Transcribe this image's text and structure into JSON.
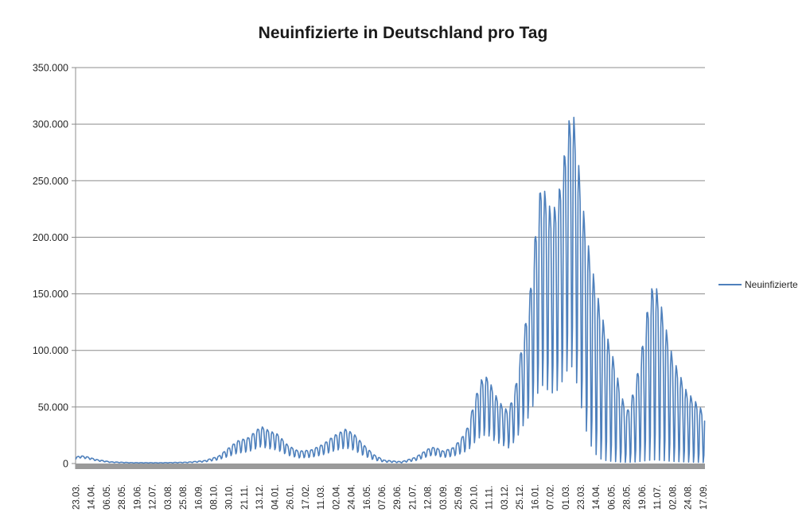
{
  "chart_data": {
    "type": "line",
    "title": "Neuinfizierte in Deutschland pro Tag",
    "legend_position": "right",
    "grid": "horizontal",
    "series": [
      {
        "name": "Neuinfizierte",
        "color": "#4E80BC"
      }
    ],
    "y_axis": {
      "min": 0,
      "max": 350000,
      "step": 50000,
      "tick_labels": [
        "0",
        "50.000",
        "100.000",
        "150.000",
        "200.000",
        "250.000",
        "300.000",
        "350.000"
      ]
    },
    "x_axis": {
      "tick_interval_points": 22,
      "total_points": 905,
      "tick_labels": [
        "23.03.",
        "14.04.",
        "06.05.",
        "28.05.",
        "19.06.",
        "12.07.",
        "03.08.",
        "25.08.",
        "16.09.",
        "08.10.",
        "30.10.",
        "21.11.",
        "13.12.",
        "04.01.",
        "26.01.",
        "17.02.",
        "11.03.",
        "02.04.",
        "24.04.",
        "16.05.",
        "07.06.",
        "29.06.",
        "21.07.",
        "12.08.",
        "03.09.",
        "25.09.",
        "20.10.",
        "11.11.",
        "03.12.",
        "25.12.",
        "16.01.",
        "07.02.",
        "01.03.",
        "23.03.",
        "14.04.",
        "06.05.",
        "28.05.",
        "19.06.",
        "11.07.",
        "02.08.",
        "24.08.",
        "17.09."
      ]
    },
    "weekly_pattern": {
      "day0": "Monday",
      "shape_mon_to_sun": [
        0.15,
        0.85,
        1.0,
        0.97,
        0.9,
        0.5,
        0.0
      ]
    },
    "envelope_anchors_format": "[day_index, weekday_peak_value, weekend_dip_fraction]",
    "envelope_anchors": [
      [
        0,
        5500,
        0.7
      ],
      [
        6,
        7000,
        0.7
      ],
      [
        16,
        6000,
        0.7
      ],
      [
        30,
        3500,
        0.65
      ],
      [
        50,
        1500,
        0.6
      ],
      [
        80,
        800,
        0.55
      ],
      [
        120,
        700,
        0.55
      ],
      [
        160,
        1200,
        0.55
      ],
      [
        185,
        2600,
        0.5
      ],
      [
        205,
        6500,
        0.5
      ],
      [
        220,
        14000,
        0.45
      ],
      [
        232,
        20000,
        0.45
      ],
      [
        248,
        23000,
        0.45
      ],
      [
        266,
        33000,
        0.45
      ],
      [
        278,
        29000,
        0.45
      ],
      [
        290,
        26000,
        0.45
      ],
      [
        305,
        16000,
        0.45
      ],
      [
        320,
        11000,
        0.45
      ],
      [
        338,
        12000,
        0.45
      ],
      [
        355,
        17000,
        0.45
      ],
      [
        372,
        25000,
        0.45
      ],
      [
        388,
        30500,
        0.45
      ],
      [
        400,
        26000,
        0.45
      ],
      [
        413,
        17000,
        0.42
      ],
      [
        428,
        8000,
        0.4
      ],
      [
        443,
        3000,
        0.4
      ],
      [
        468,
        1600,
        0.4
      ],
      [
        488,
        5500,
        0.45
      ],
      [
        508,
        13500,
        0.5
      ],
      [
        516,
        14500,
        0.5
      ],
      [
        528,
        11000,
        0.48
      ],
      [
        542,
        14000,
        0.45
      ],
      [
        554,
        22000,
        0.4
      ],
      [
        564,
        33000,
        0.35
      ],
      [
        574,
        58000,
        0.33
      ],
      [
        583,
        74000,
        0.33
      ],
      [
        592,
        77000,
        0.33
      ],
      [
        602,
        62000,
        0.32
      ],
      [
        612,
        52000,
        0.32
      ],
      [
        622,
        46000,
        0.3
      ],
      [
        632,
        68000,
        0.3
      ],
      [
        642,
        108000,
        0.3
      ],
      [
        652,
        145000,
        0.29
      ],
      [
        661,
        205000,
        0.28
      ],
      [
        669,
        250000,
        0.28
      ],
      [
        676,
        237000,
        0.28
      ],
      [
        684,
        222000,
        0.28
      ],
      [
        692,
        231000,
        0.28
      ],
      [
        700,
        262000,
        0.28
      ],
      [
        707,
        297000,
        0.28
      ],
      [
        714,
        318000,
        0.27
      ],
      [
        721,
        276000,
        0.25
      ],
      [
        728,
        232000,
        0.2
      ],
      [
        736,
        196000,
        0.12
      ],
      [
        745,
        164000,
        0.06
      ],
      [
        755,
        134000,
        0.03
      ],
      [
        765,
        110000,
        0.02
      ],
      [
        775,
        88000,
        0.02
      ],
      [
        784,
        60000,
        0.02
      ],
      [
        793,
        47000,
        0.02
      ],
      [
        803,
        66000,
        0.02
      ],
      [
        813,
        98000,
        0.02
      ],
      [
        823,
        142000,
        0.02
      ],
      [
        831,
        162000,
        0.02
      ],
      [
        839,
        147000,
        0.02
      ],
      [
        849,
        118000,
        0.02
      ],
      [
        858,
        94000,
        0.02
      ],
      [
        868,
        79000,
        0.02
      ],
      [
        878,
        64000,
        0.02
      ],
      [
        888,
        57000,
        0.02
      ],
      [
        897,
        50000,
        0.02
      ],
      [
        904,
        44000,
        0.02
      ]
    ],
    "max_value_approx": 318000
  },
  "colors": {
    "series_line": "#4E80BC",
    "gridline": "#8C8C8C",
    "axis_line": "#8C8C8C",
    "x_axis_bar": "#9A9A9A",
    "tick_text": "#262626",
    "title_text": "#1a1a1a",
    "background": "#ffffff"
  }
}
